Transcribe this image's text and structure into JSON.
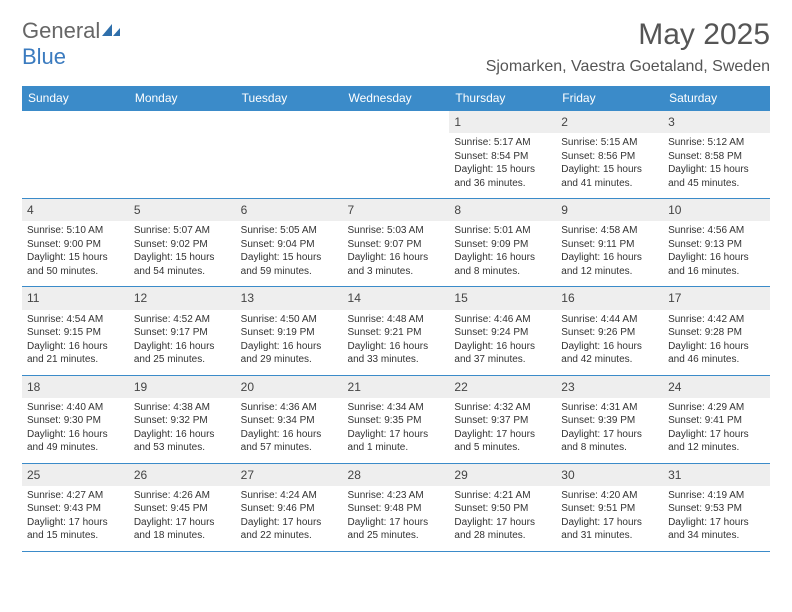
{
  "logo": {
    "text_general": "General",
    "text_blue": "Blue"
  },
  "title": "May 2025",
  "location": "Sjomarken, Vaestra Goetaland, Sweden",
  "header_bg": "#3b8bc9",
  "weekdays": [
    "Sunday",
    "Monday",
    "Tuesday",
    "Wednesday",
    "Thursday",
    "Friday",
    "Saturday"
  ],
  "colors": {
    "header_bg": "#3b8bc9",
    "header_text": "#ffffff",
    "daynum_bg": "#eeeeee",
    "border": "#3b8bc9",
    "body_text": "#333333",
    "title_text": "#555555"
  },
  "first_weekday_index": 4,
  "days": [
    {
      "n": 1,
      "sunrise": "5:17 AM",
      "sunset": "8:54 PM",
      "daylight": "15 hours and 36 minutes."
    },
    {
      "n": 2,
      "sunrise": "5:15 AM",
      "sunset": "8:56 PM",
      "daylight": "15 hours and 41 minutes."
    },
    {
      "n": 3,
      "sunrise": "5:12 AM",
      "sunset": "8:58 PM",
      "daylight": "15 hours and 45 minutes."
    },
    {
      "n": 4,
      "sunrise": "5:10 AM",
      "sunset": "9:00 PM",
      "daylight": "15 hours and 50 minutes."
    },
    {
      "n": 5,
      "sunrise": "5:07 AM",
      "sunset": "9:02 PM",
      "daylight": "15 hours and 54 minutes."
    },
    {
      "n": 6,
      "sunrise": "5:05 AM",
      "sunset": "9:04 PM",
      "daylight": "15 hours and 59 minutes."
    },
    {
      "n": 7,
      "sunrise": "5:03 AM",
      "sunset": "9:07 PM",
      "daylight": "16 hours and 3 minutes."
    },
    {
      "n": 8,
      "sunrise": "5:01 AM",
      "sunset": "9:09 PM",
      "daylight": "16 hours and 8 minutes."
    },
    {
      "n": 9,
      "sunrise": "4:58 AM",
      "sunset": "9:11 PM",
      "daylight": "16 hours and 12 minutes."
    },
    {
      "n": 10,
      "sunrise": "4:56 AM",
      "sunset": "9:13 PM",
      "daylight": "16 hours and 16 minutes."
    },
    {
      "n": 11,
      "sunrise": "4:54 AM",
      "sunset": "9:15 PM",
      "daylight": "16 hours and 21 minutes."
    },
    {
      "n": 12,
      "sunrise": "4:52 AM",
      "sunset": "9:17 PM",
      "daylight": "16 hours and 25 minutes."
    },
    {
      "n": 13,
      "sunrise": "4:50 AM",
      "sunset": "9:19 PM",
      "daylight": "16 hours and 29 minutes."
    },
    {
      "n": 14,
      "sunrise": "4:48 AM",
      "sunset": "9:21 PM",
      "daylight": "16 hours and 33 minutes."
    },
    {
      "n": 15,
      "sunrise": "4:46 AM",
      "sunset": "9:24 PM",
      "daylight": "16 hours and 37 minutes."
    },
    {
      "n": 16,
      "sunrise": "4:44 AM",
      "sunset": "9:26 PM",
      "daylight": "16 hours and 42 minutes."
    },
    {
      "n": 17,
      "sunrise": "4:42 AM",
      "sunset": "9:28 PM",
      "daylight": "16 hours and 46 minutes."
    },
    {
      "n": 18,
      "sunrise": "4:40 AM",
      "sunset": "9:30 PM",
      "daylight": "16 hours and 49 minutes."
    },
    {
      "n": 19,
      "sunrise": "4:38 AM",
      "sunset": "9:32 PM",
      "daylight": "16 hours and 53 minutes."
    },
    {
      "n": 20,
      "sunrise": "4:36 AM",
      "sunset": "9:34 PM",
      "daylight": "16 hours and 57 minutes."
    },
    {
      "n": 21,
      "sunrise": "4:34 AM",
      "sunset": "9:35 PM",
      "daylight": "17 hours and 1 minute."
    },
    {
      "n": 22,
      "sunrise": "4:32 AM",
      "sunset": "9:37 PM",
      "daylight": "17 hours and 5 minutes."
    },
    {
      "n": 23,
      "sunrise": "4:31 AM",
      "sunset": "9:39 PM",
      "daylight": "17 hours and 8 minutes."
    },
    {
      "n": 24,
      "sunrise": "4:29 AM",
      "sunset": "9:41 PM",
      "daylight": "17 hours and 12 minutes."
    },
    {
      "n": 25,
      "sunrise": "4:27 AM",
      "sunset": "9:43 PM",
      "daylight": "17 hours and 15 minutes."
    },
    {
      "n": 26,
      "sunrise": "4:26 AM",
      "sunset": "9:45 PM",
      "daylight": "17 hours and 18 minutes."
    },
    {
      "n": 27,
      "sunrise": "4:24 AM",
      "sunset": "9:46 PM",
      "daylight": "17 hours and 22 minutes."
    },
    {
      "n": 28,
      "sunrise": "4:23 AM",
      "sunset": "9:48 PM",
      "daylight": "17 hours and 25 minutes."
    },
    {
      "n": 29,
      "sunrise": "4:21 AM",
      "sunset": "9:50 PM",
      "daylight": "17 hours and 28 minutes."
    },
    {
      "n": 30,
      "sunrise": "4:20 AM",
      "sunset": "9:51 PM",
      "daylight": "17 hours and 31 minutes."
    },
    {
      "n": 31,
      "sunrise": "4:19 AM",
      "sunset": "9:53 PM",
      "daylight": "17 hours and 34 minutes."
    }
  ],
  "labels": {
    "sunrise": "Sunrise:",
    "sunset": "Sunset:",
    "daylight": "Daylight:"
  }
}
